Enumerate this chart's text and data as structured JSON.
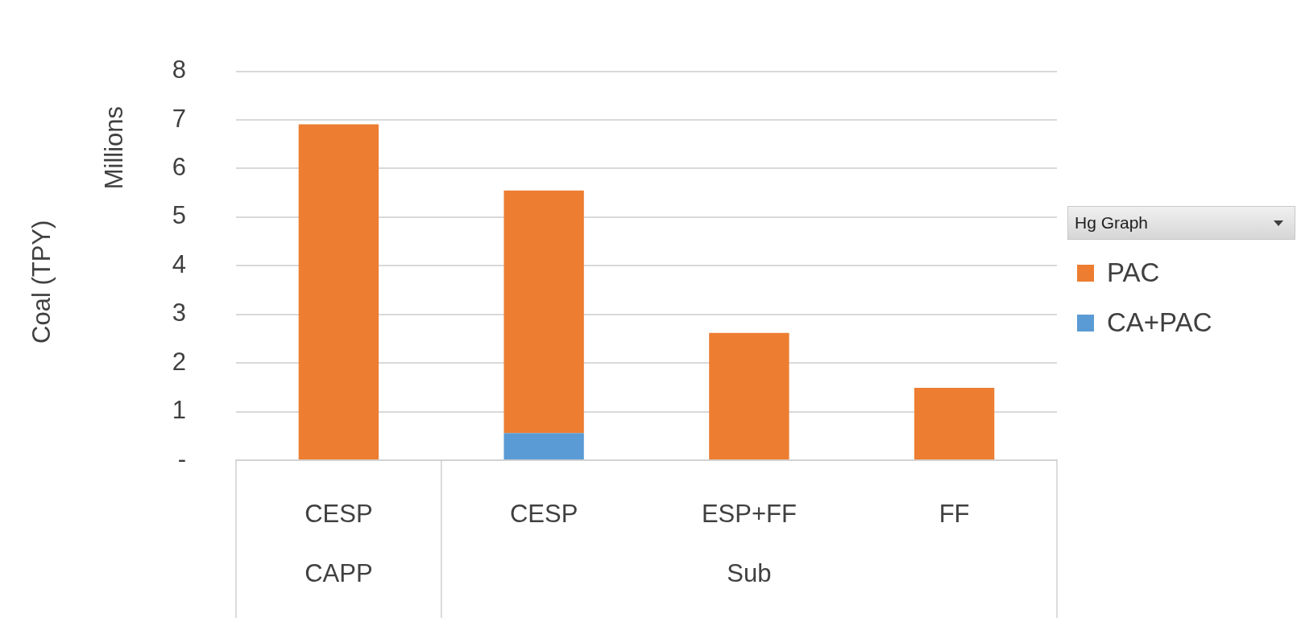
{
  "chart_data": {
    "type": "bar",
    "stacked": true,
    "ylabel": "Coal (TPY)",
    "legend_title": "Hg Graph",
    "legend": "right",
    "grid": "y",
    "categories": [
      "CESP",
      "CESP",
      "ESP+FF",
      "FF"
    ],
    "series": [
      {
        "name": "CA+PAC",
        "color": "#5b9bd5",
        "values": [
          null,
          0.56,
          null,
          null
        ]
      },
      {
        "name": "PAC",
        "color": "#ed7d31",
        "values": [
          6.91,
          4.99,
          2.62,
          1.49
        ]
      }
    ],
    "ylim": [
      0,
      8
    ],
    "yticks": [
      {
        "value": 0,
        "label": "-"
      },
      1,
      2,
      3,
      4,
      5,
      6,
      7,
      8
    ],
    "annotations": [
      "Millions",
      "CAPP",
      "Sub"
    ]
  }
}
